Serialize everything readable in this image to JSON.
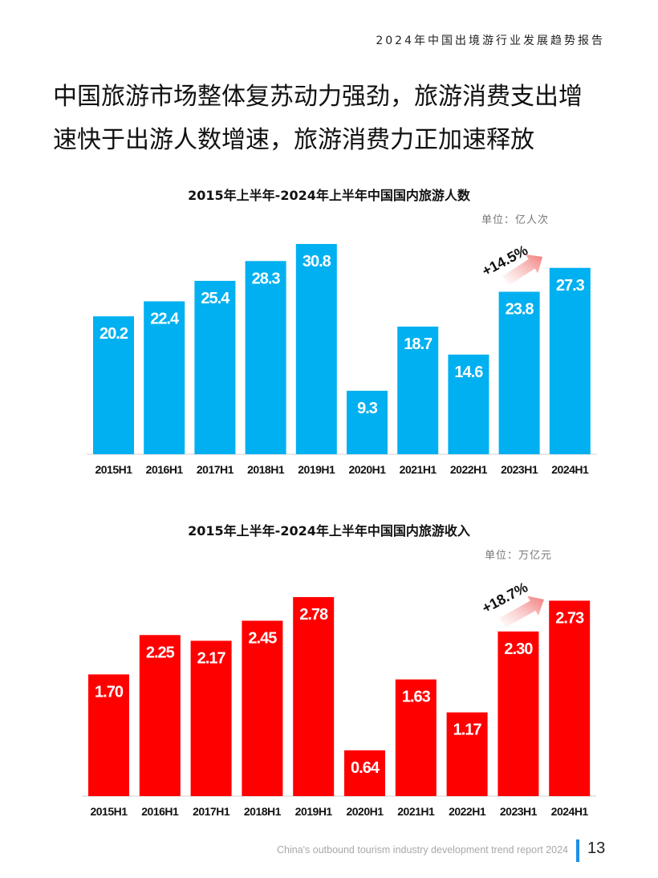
{
  "header": {
    "report_title": "2024年中国出境游行业发展趋势报告"
  },
  "headline": {
    "line1": "中国旅游市场整体复苏动力强劲，旅游消费支出增",
    "line2": "速快于出游人数增速，旅游消费力正加速释放"
  },
  "chart_data": [
    {
      "type": "bar",
      "title": "2015年上半年-2024年上半年中国国内旅游人数",
      "unit": "单位：亿人次",
      "categories": [
        "2015H1",
        "2016H1",
        "2017H1",
        "2018H1",
        "2019H1",
        "2020H1",
        "2021H1",
        "2022H1",
        "2023H1",
        "2024H1"
      ],
      "values": [
        20.2,
        22.4,
        25.4,
        28.3,
        30.8,
        9.3,
        18.7,
        14.6,
        23.8,
        27.3
      ],
      "value_labels": [
        "20.2",
        "22.4",
        "25.4",
        "28.3",
        "30.8",
        "9.3",
        "18.7",
        "14.6",
        "23.8",
        "27.3"
      ],
      "annotation": "+14.5%",
      "color": "#00b0f0",
      "ylim": [
        0,
        30.8
      ]
    },
    {
      "type": "bar",
      "title": "2015年上半年-2024年上半年中国国内旅游收入",
      "unit": "单位：万亿元",
      "categories": [
        "2015H1",
        "2016H1",
        "2017H1",
        "2018H1",
        "2019H1",
        "2020H1",
        "2021H1",
        "2022H1",
        "2023H1",
        "2024H1"
      ],
      "values": [
        1.7,
        2.25,
        2.17,
        2.45,
        2.78,
        0.64,
        1.63,
        1.17,
        2.3,
        2.73
      ],
      "value_labels": [
        "1.70",
        "2.25",
        "2.17",
        "2.45",
        "2.78",
        "0.64",
        "1.63",
        "1.17",
        "2.30",
        "2.73"
      ],
      "annotation": "+18.7%",
      "color": "#ff0000",
      "ylim": [
        0,
        2.78
      ]
    }
  ],
  "footer": {
    "text": "China's outbound tourism industry development trend report 2024",
    "page_number": "13"
  }
}
